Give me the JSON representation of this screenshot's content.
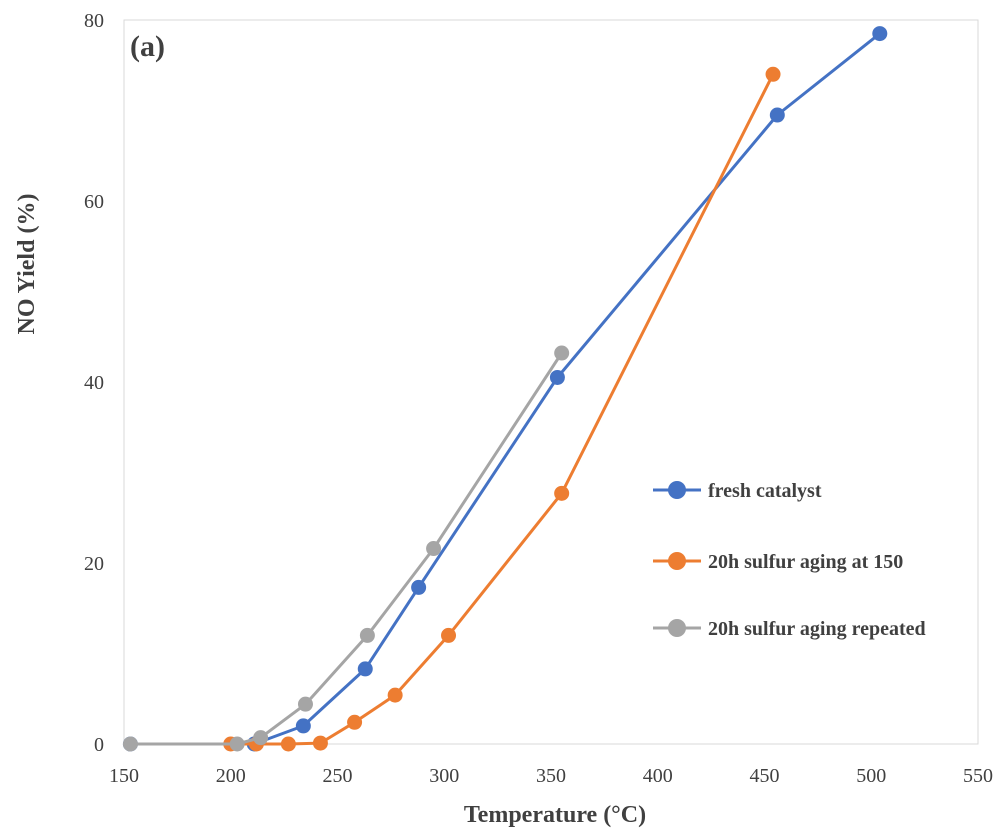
{
  "chart_data": {
    "type": "line",
    "panel_label": "(a)",
    "xlabel": "Temperature (°C)",
    "ylabel": "NO Yield (%)",
    "xlim": [
      150,
      550
    ],
    "ylim": [
      0,
      80
    ],
    "x_ticks": [
      150,
      200,
      250,
      300,
      350,
      400,
      450,
      500,
      550
    ],
    "y_ticks": [
      0,
      20,
      40,
      60,
      80
    ],
    "grid": false,
    "legend_position": "right",
    "series": [
      {
        "name": "fresh catalyst",
        "color": "#4472C4",
        "points": [
          [
            153,
            0
          ],
          [
            211,
            0
          ],
          [
            234,
            2.0
          ],
          [
            263,
            8.3
          ],
          [
            288,
            17.3
          ],
          [
            353,
            40.5
          ],
          [
            456,
            69.5
          ],
          [
            504,
            78.5
          ]
        ]
      },
      {
        "name": "20h sulfur aging at 150",
        "color": "#ED7D31",
        "points": [
          [
            200,
            0
          ],
          [
            212,
            0
          ],
          [
            227,
            0
          ],
          [
            242,
            0.1
          ],
          [
            258,
            2.4
          ],
          [
            277,
            5.4
          ],
          [
            302,
            12.0
          ],
          [
            355,
            27.7
          ],
          [
            454,
            74.0
          ]
        ]
      },
      {
        "name": "20h sulfur aging repeated",
        "color": "#A5A5A5",
        "points": [
          [
            153,
            0
          ],
          [
            203,
            0
          ],
          [
            214,
            0.7
          ],
          [
            235,
            4.4
          ],
          [
            264,
            12.0
          ],
          [
            295,
            21.6
          ],
          [
            355,
            43.2
          ]
        ]
      }
    ]
  }
}
